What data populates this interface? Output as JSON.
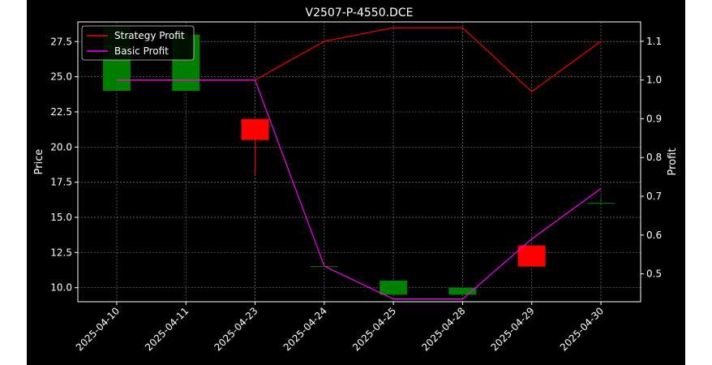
{
  "chart_data": {
    "type": "candlestick+line",
    "title": "V2507-P-4550.DCE",
    "categories": [
      "2025-04-10",
      "2025-04-11",
      "2025-04-23",
      "2025-04-24",
      "2025-04-25",
      "2025-04-28",
      "2025-04-29",
      "2025-04-30"
    ],
    "ylabel_left": "Price",
    "ylabel_right": "Profit",
    "ylim_left": [
      9.0,
      28.9
    ],
    "ylim_right": [
      0.428,
      1.15
    ],
    "yticks_left": [
      "10.0",
      "12.5",
      "15.0",
      "17.5",
      "20.0",
      "22.5",
      "25.0",
      "27.5"
    ],
    "yticks_right": [
      "0.5",
      "0.6",
      "0.7",
      "0.8",
      "0.9",
      "1.0",
      "1.1"
    ],
    "candles": [
      {
        "date": "2025-04-10",
        "open": 24.0,
        "close": 28.5,
        "high": 28.5,
        "low": 24.0
      },
      {
        "date": "2025-04-11",
        "open": 24.0,
        "close": 28.0,
        "high": 28.0,
        "low": 24.0
      },
      {
        "date": "2025-04-23",
        "open": 22.0,
        "close": 20.5,
        "high": 22.0,
        "low": 18.0
      },
      {
        "date": "2025-04-24",
        "open": 11.5,
        "close": 11.5,
        "high": 11.5,
        "low": 11.5
      },
      {
        "date": "2025-04-25",
        "open": 9.5,
        "close": 10.5,
        "high": 10.5,
        "low": 9.5
      },
      {
        "date": "2025-04-28",
        "open": 9.5,
        "close": 10.0,
        "high": 10.0,
        "low": 9.5
      },
      {
        "date": "2025-04-29",
        "open": 13.0,
        "close": 11.5,
        "high": 13.0,
        "low": 11.5
      },
      {
        "date": "2025-04-30",
        "open": 16.0,
        "close": 16.0,
        "high": 16.5,
        "low": 16.0
      }
    ],
    "series": [
      {
        "name": "Strategy Profit",
        "color": "#ff0000",
        "values": [
          1.0,
          1.0,
          1.0,
          1.1,
          1.135,
          1.135,
          0.97,
          1.1
        ]
      },
      {
        "name": "Basic Profit",
        "color": "#ff00ff",
        "values": [
          1.0,
          1.0,
          1.0,
          0.52,
          0.435,
          0.435,
          0.59,
          0.72
        ]
      }
    ],
    "up_color": "#008000",
    "down_color": "#ff0000",
    "grid": true,
    "legend": "top-left"
  }
}
